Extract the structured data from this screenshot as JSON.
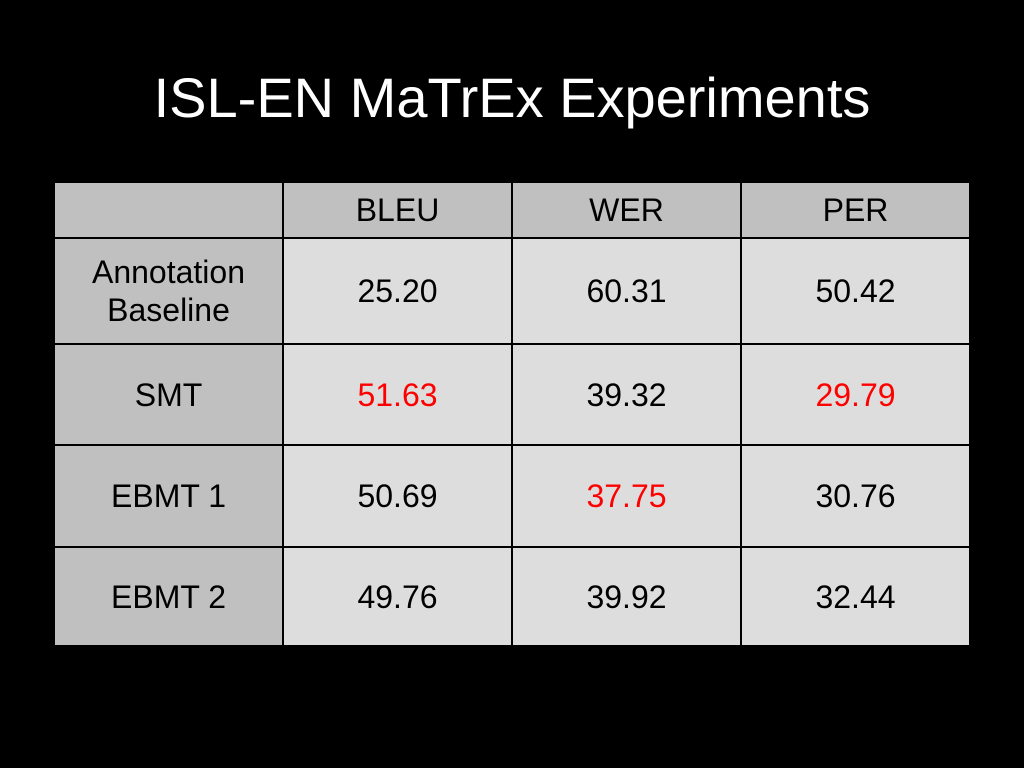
{
  "title": "ISL-EN MaTrEx Experiments",
  "table": {
    "header": [
      "BLEU",
      "WER",
      "PER"
    ],
    "rows": [
      {
        "label": "Annotation Baseline",
        "cells": [
          {
            "text": "25.20",
            "color": "#000000"
          },
          {
            "text": "60.31",
            "color": "#000000"
          },
          {
            "text": "50.42",
            "color": "#000000"
          }
        ]
      },
      {
        "label": "SMT",
        "cells": [
          {
            "text": "51.63",
            "color": "#ff0000"
          },
          {
            "text": "39.32",
            "color": "#000000"
          },
          {
            "text": "29.79",
            "color": "#ff0000"
          }
        ]
      },
      {
        "label": "EBMT 1",
        "cells": [
          {
            "text": "50.69",
            "color": "#000000"
          },
          {
            "text": "37.75",
            "color": "#ff0000"
          },
          {
            "text": "30.76",
            "color": "#000000"
          }
        ]
      },
      {
        "label": "EBMT 2",
        "cells": [
          {
            "text": "49.76",
            "color": "#000000"
          },
          {
            "text": "39.92",
            "color": "#000000"
          },
          {
            "text": "32.44",
            "color": "#000000"
          }
        ]
      }
    ]
  }
}
